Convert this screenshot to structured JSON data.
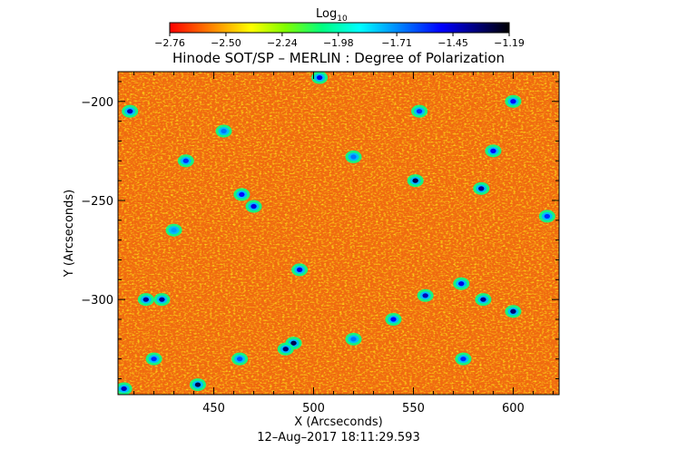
{
  "chart_data": {
    "type": "heatmap",
    "title": "Hinode SOT/SP – MERLIN : Degree of Polarization",
    "xlabel": "X (Arcseconds)",
    "ylabel": "Y (Arcseconds)",
    "timestamp": "12–Aug–2017 18:11:29.593",
    "xlim": [
      402,
      623
    ],
    "ylim": [
      -348,
      -185
    ],
    "x_ticks": [
      450,
      500,
      550,
      600
    ],
    "x_tick_labels": [
      "450",
      "500",
      "550",
      "600"
    ],
    "y_ticks": [
      -200,
      -250,
      -300
    ],
    "y_tick_labels": [
      "−200",
      "−250",
      "−300"
    ],
    "colorbar": {
      "label_base": "Log",
      "label_sub": "10",
      "range": [
        -2.76,
        -1.19
      ],
      "ticks": [
        -2.76,
        -2.5,
        -2.24,
        -1.98,
        -1.71,
        -1.45,
        -1.19
      ],
      "tick_labels": [
        "−2.76",
        "−2.50",
        "−2.24",
        "−1.98",
        "−1.71",
        "−1.45",
        "−1.19"
      ],
      "colormap": [
        "#ff0000",
        "#ff8000",
        "#ffff00",
        "#80ff00",
        "#00ff80",
        "#00ffff",
        "#0080ff",
        "#0000ff",
        "#000080",
        "#000000"
      ]
    },
    "background_level": -2.55,
    "features": [
      {
        "x": 408,
        "y": -205,
        "value": -1.45
      },
      {
        "x": 436,
        "y": -230,
        "value": -1.6
      },
      {
        "x": 464,
        "y": -247,
        "value": -1.55
      },
      {
        "x": 470,
        "y": -253,
        "value": -1.5
      },
      {
        "x": 493,
        "y": -285,
        "value": -1.5
      },
      {
        "x": 416,
        "y": -300,
        "value": -1.4
      },
      {
        "x": 424,
        "y": -300,
        "value": -1.4
      },
      {
        "x": 420,
        "y": -330,
        "value": -1.6
      },
      {
        "x": 490,
        "y": -322,
        "value": -1.3
      },
      {
        "x": 486,
        "y": -325,
        "value": -1.35
      },
      {
        "x": 520,
        "y": -228,
        "value": -1.7
      },
      {
        "x": 551,
        "y": -240,
        "value": -1.3
      },
      {
        "x": 584,
        "y": -244,
        "value": -1.4
      },
      {
        "x": 590,
        "y": -225,
        "value": -1.55
      },
      {
        "x": 553,
        "y": -205,
        "value": -1.6
      },
      {
        "x": 503,
        "y": -188,
        "value": -1.5
      },
      {
        "x": 574,
        "y": -292,
        "value": -1.5
      },
      {
        "x": 585,
        "y": -300,
        "value": -1.4
      },
      {
        "x": 600,
        "y": -306,
        "value": -1.35
      },
      {
        "x": 442,
        "y": -343,
        "value": -1.3
      },
      {
        "x": 405,
        "y": -345,
        "value": -1.45
      },
      {
        "x": 540,
        "y": -310,
        "value": -1.55
      },
      {
        "x": 556,
        "y": -298,
        "value": -1.45
      },
      {
        "x": 463,
        "y": -330,
        "value": -1.65
      },
      {
        "x": 600,
        "y": -200,
        "value": -1.55
      },
      {
        "x": 617,
        "y": -258,
        "value": -1.6
      },
      {
        "x": 520,
        "y": -320,
        "value": -1.7
      },
      {
        "x": 575,
        "y": -330,
        "value": -1.6
      },
      {
        "x": 430,
        "y": -265,
        "value": -1.75
      },
      {
        "x": 455,
        "y": -215,
        "value": -1.7
      }
    ]
  }
}
